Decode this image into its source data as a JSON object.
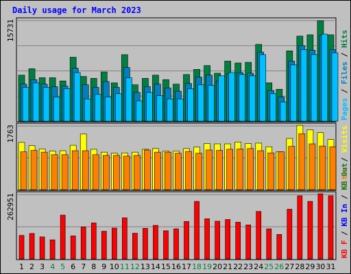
{
  "title": "Daily usage for March 2023",
  "colors": {
    "background": "#c0c0c0",
    "plot": "#c0c0c0",
    "grid": "#808080",
    "title": "#0000ff",
    "hits": "#008040",
    "files": "#0080c0",
    "pages": "#00c0ff",
    "visits": "#ffff00",
    "sites": "#ff8000",
    "kb_out": "#008040",
    "kb_in": "#0000ff",
    "kb_f": "#ff0000",
    "weekend_label": "#008040",
    "weekday_label": "#000000"
  },
  "chart_data": {
    "type": "bar",
    "title": "Daily usage for March 2023",
    "categories": [
      "1",
      "2",
      "3",
      "4",
      "5",
      "6",
      "7",
      "8",
      "9",
      "10",
      "11",
      "12",
      "13",
      "14",
      "15",
      "16",
      "17",
      "18",
      "19",
      "20",
      "21",
      "22",
      "23",
      "24",
      "25",
      "26",
      "27",
      "28",
      "29",
      "30",
      "31"
    ],
    "weekend_days": [
      "4",
      "5",
      "11",
      "12",
      "18",
      "19",
      "25",
      "26"
    ],
    "panels": [
      {
        "name": "top",
        "ymax_label": "15731",
        "ymax": 15731,
        "series": [
          {
            "name": "Hits",
            "color": "#008040",
            "values": [
              7200,
              8200,
              6800,
              6800,
              6300,
              10000,
              7000,
              6700,
              7700,
              6000,
              10400,
              5700,
              6700,
              7200,
              6500,
              5800,
              7300,
              8100,
              8700,
              7500,
              9400,
              9100,
              9200,
              12000,
              6000,
              5000,
              11000,
              13300,
              13500,
              15700,
              13500
            ]
          },
          {
            "name": "Files",
            "color": "#0080c0",
            "values": [
              5800,
              6500,
              5800,
              5400,
              5500,
              8300,
              5700,
              5300,
              6200,
              5300,
              8400,
              4500,
              5400,
              5800,
              5200,
              4700,
              5900,
              6900,
              7200,
              6300,
              7400,
              7600,
              7500,
              10800,
              4800,
              3800,
              9400,
              11800,
              11100,
              13400,
              11200
            ]
          },
          {
            "name": "Pages",
            "color": "#00c0ff",
            "values": [
              5300,
              6000,
              5300,
              3800,
              5100,
              7600,
              3500,
              4200,
              3800,
              4300,
              6800,
              3200,
              4500,
              4000,
              3500,
              3500,
              5100,
              5700,
              5600,
              7100,
              7600,
              7300,
              7100,
              10400,
              4300,
              3000,
              8800,
              11200,
              10400,
              13600,
              10700
            ]
          }
        ],
        "right_labels": [
          {
            "text": "Pages",
            "color": "#00c0ff"
          },
          {
            "text": " / ",
            "color": "#000000"
          },
          {
            "text": "Files",
            "color": "#0080c0"
          },
          {
            "text": " / ",
            "color": "#000000"
          },
          {
            "text": "Hits",
            "color": "#008040"
          }
        ]
      },
      {
        "name": "middle",
        "ymax_label": "1763",
        "ymax": 1763,
        "series": [
          {
            "name": "Visits",
            "color": "#ffff00",
            "values": [
              1310,
              1220,
              1130,
              1070,
              1080,
              1230,
              1540,
              1120,
              1040,
              1010,
              1020,
              1040,
              1120,
              1140,
              1070,
              1070,
              1140,
              1180,
              1280,
              1270,
              1270,
              1320,
              1280,
              1290,
              1190,
              1050,
              1420,
              1780,
              1660,
              1580,
              1390
            ]
          },
          {
            "name": "Sites",
            "color": "#ff8000",
            "values": [
              1050,
              1090,
              1040,
              970,
              970,
              1080,
              1080,
              970,
              950,
              950,
              930,
              950,
              1100,
              1040,
              1040,
              1010,
              1060,
              1010,
              1100,
              1090,
              1120,
              1130,
              1140,
              1080,
              1020,
              1050,
              1200,
              1550,
              1270,
              1210,
              1190
            ]
          }
        ],
        "right_labels": [
          {
            "text": "Sites",
            "color": "#ff8000"
          },
          {
            "text": " / ",
            "color": "#000000"
          },
          {
            "text": "Visits",
            "color": "#ffff00"
          }
        ]
      },
      {
        "name": "bottom",
        "ymax_label": "262951",
        "ymax": 262951,
        "series": [
          {
            "name": "KBytes",
            "color": "#ff0000",
            "values": [
              96000,
              104000,
              90000,
              78000,
              179000,
              94000,
              131000,
              147000,
              113000,
              126000,
              168000,
              105000,
              125000,
              137000,
              115000,
              123000,
              153000,
              235000,
              164000,
              154000,
              161000,
              150000,
              139000,
              194000,
              123000,
              100000,
              203000,
              258000,
              235000,
              266000,
              258000
            ]
          }
        ],
        "right_labels": [
          {
            "text": "KB F",
            "color": "#ff0000"
          },
          {
            "text": " / ",
            "color": "#000000"
          },
          {
            "text": "KB In",
            "color": "#0000ff"
          },
          {
            "text": " / ",
            "color": "#000000"
          },
          {
            "text": "KB Out",
            "color": "#008040"
          }
        ]
      }
    ]
  }
}
